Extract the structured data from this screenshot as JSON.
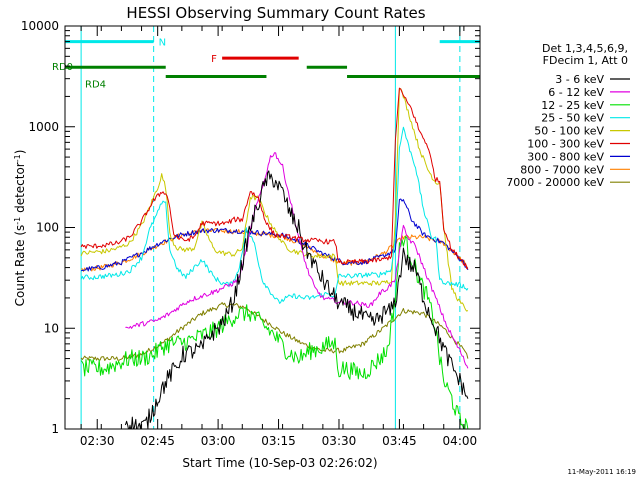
{
  "chart_data": {
    "type": "line",
    "title": "HESSI Observing Summary Count Rates",
    "xlabel": "Start Time (10-Sep-03 02:26:02)",
    "ylabel_main": "Count Rate (s",
    "ylabel_exp": "-1",
    "ylabel_mid": " detector",
    "ylabel_close": ")",
    "timestamp": "11-May-2011 16:19",
    "x_unit": "minutes since 02:26",
    "xlim": [
      -4,
      99
    ],
    "ylim": [
      1,
      10000
    ],
    "yscale": "log",
    "x_ticks": [
      {
        "label": "02:30",
        "value": 4
      },
      {
        "label": "02:45",
        "value": 19
      },
      {
        "label": "03:00",
        "value": 34
      },
      {
        "label": "03:15",
        "value": 49
      },
      {
        "label": "03:30",
        "value": 64
      },
      {
        "label": "03:45",
        "value": 79
      },
      {
        "label": "04:00",
        "value": 94
      }
    ],
    "y_ticks": [
      {
        "label": "1",
        "value": 1
      },
      {
        "label": "10",
        "value": 10
      },
      {
        "label": "100",
        "value": 100
      },
      {
        "label": "1000",
        "value": 1000
      },
      {
        "label": "10000",
        "value": 10000
      }
    ],
    "legend_header": [
      "Det 1,3,4,5,6,9,",
      "FDecim 1, Att 0"
    ],
    "series": [
      {
        "name": "3 - 6 keV",
        "color": "#000000",
        "x": [
          11,
          13,
          15,
          16,
          18,
          20,
          22,
          24,
          25,
          27,
          30,
          32,
          34,
          36,
          38,
          40,
          42,
          44,
          46,
          48,
          50,
          52,
          54,
          55,
          57,
          59,
          61,
          63,
          64,
          65,
          67,
          69,
          71,
          73,
          75,
          77,
          78,
          79,
          80,
          81,
          83,
          85,
          88,
          91,
          94,
          96
        ],
        "y": [
          1.2,
          1.1,
          1.05,
          1.1,
          1.6,
          2.5,
          3.4,
          4.3,
          5.4,
          5.8,
          6.3,
          8.6,
          10,
          13,
          20,
          45,
          100,
          175,
          300,
          300,
          220,
          135,
          98,
          70,
          50,
          35,
          26,
          20,
          18,
          17,
          15,
          14,
          12,
          11.5,
          14,
          15,
          19,
          30,
          60,
          45,
          38,
          20,
          10,
          5,
          3,
          2
        ]
      },
      {
        "name": "6 - 12 keV",
        "color": "#e000e0",
        "x": [
          11,
          15,
          19,
          22,
          25,
          27,
          30,
          33,
          35,
          37,
          39,
          41,
          43,
          45,
          47,
          48,
          50,
          52,
          54,
          56,
          58,
          60,
          62,
          63,
          64,
          66,
          68,
          70,
          72,
          74,
          76,
          78,
          79,
          80,
          81,
          83,
          85,
          88,
          91,
          94,
          96
        ],
        "y": [
          10,
          11,
          12,
          14,
          17,
          19,
          21,
          23,
          25,
          27,
          30,
          60,
          140,
          250,
          500,
          560,
          400,
          180,
          80,
          40,
          25,
          20,
          19,
          19,
          18,
          18,
          18,
          17,
          17,
          22,
          25,
          30,
          60,
          100,
          80,
          65,
          40,
          20,
          10,
          6,
          4
        ]
      },
      {
        "name": "12 - 25 keV",
        "color": "#00e000",
        "x": [
          0,
          3,
          6,
          9,
          12,
          15,
          18,
          20,
          22,
          25,
          28,
          30,
          33,
          36,
          39,
          42,
          45,
          48,
          51,
          54,
          57,
          60,
          62,
          63,
          64,
          65,
          67,
          70,
          73,
          76,
          78,
          79,
          80,
          82,
          84,
          86,
          88,
          89,
          90,
          92,
          94,
          96
        ],
        "y": [
          4,
          4,
          4,
          4.5,
          5,
          5,
          5.5,
          6.5,
          7,
          7.2,
          7.8,
          8.5,
          9.5,
          11.5,
          14,
          14,
          11,
          8.5,
          6,
          5,
          6,
          6.5,
          7,
          7,
          3.8,
          4,
          3.8,
          3.5,
          4.5,
          6,
          20,
          60,
          80,
          50,
          30,
          20,
          10,
          5,
          3,
          2,
          1.2,
          1
        ]
      },
      {
        "name": "25 - 50 keV",
        "color": "#00e8e8",
        "x": [
          0,
          3,
          6,
          9,
          12,
          15,
          17,
          19,
          20,
          21,
          22,
          24,
          26,
          28,
          30,
          33,
          35,
          37,
          39,
          41,
          43,
          45,
          47,
          49,
          51,
          53,
          55,
          57,
          59,
          61,
          63,
          64,
          65,
          68,
          71,
          74,
          77,
          78,
          79,
          80,
          81,
          83,
          85,
          87,
          88,
          89,
          91,
          94,
          96
        ],
        "y": [
          32,
          32,
          33,
          34,
          37,
          50,
          95,
          140,
          175,
          170,
          60,
          38,
          32,
          40,
          48,
          32,
          28,
          27,
          36,
          95,
          70,
          30,
          23,
          18,
          20,
          21,
          20,
          20,
          21,
          22,
          21,
          33,
          33,
          33,
          34,
          34,
          38,
          80,
          600,
          1000,
          700,
          400,
          150,
          80,
          80,
          30,
          28,
          27,
          25
        ]
      },
      {
        "name": "50 - 100 keV",
        "color": "#c8c800",
        "x": [
          0,
          3,
          6,
          9,
          12,
          15,
          17,
          19,
          20,
          21,
          22,
          23,
          24,
          26,
          28,
          30,
          33,
          35,
          38,
          40,
          42,
          44,
          46,
          48,
          50,
          52,
          55,
          58,
          61,
          63,
          64,
          65,
          70,
          75,
          77,
          78,
          79,
          80,
          82,
          84,
          86,
          88,
          89,
          90,
          92,
          94,
          96
        ],
        "y": [
          55,
          57,
          58,
          62,
          70,
          105,
          160,
          250,
          330,
          250,
          90,
          70,
          62,
          60,
          62,
          110,
          60,
          56,
          54,
          62,
          200,
          195,
          130,
          95,
          70,
          60,
          55,
          52,
          52,
          52,
          28,
          28,
          28,
          28,
          30,
          120,
          2500,
          2000,
          1100,
          600,
          380,
          280,
          280,
          100,
          25,
          18,
          15
        ]
      },
      {
        "name": "100 - 300 keV",
        "color": "#e00000",
        "x": [
          0,
          3,
          6,
          9,
          12,
          15,
          18,
          20,
          21,
          22,
          23,
          24,
          25,
          26,
          28,
          30,
          32,
          34,
          36,
          38,
          40,
          42,
          44,
          46,
          48,
          50,
          52,
          54,
          56,
          58,
          60,
          62,
          63,
          64,
          65,
          70,
          75,
          77,
          78,
          79,
          80,
          82,
          84,
          86,
          88,
          89,
          90,
          92,
          94,
          96
        ],
        "y": [
          65,
          65,
          67,
          70,
          80,
          115,
          185,
          225,
          225,
          160,
          85,
          80,
          75,
          75,
          80,
          110,
          110,
          110,
          110,
          120,
          120,
          230,
          195,
          110,
          85,
          82,
          80,
          77,
          75,
          74,
          73,
          72,
          72,
          45,
          45,
          46,
          48,
          52,
          700,
          2500,
          2000,
          1500,
          900,
          650,
          300,
          290,
          100,
          60,
          50,
          40
        ]
      },
      {
        "name": "300 - 800 keV",
        "color": "#0000d0",
        "x": [
          0,
          5,
          10,
          15,
          20,
          25,
          30,
          35,
          40,
          45,
          50,
          55,
          60,
          65,
          70,
          75,
          78,
          79,
          80,
          82,
          85,
          90,
          95,
          96
        ],
        "y": [
          38,
          40,
          45,
          56,
          72,
          85,
          93,
          94,
          92,
          88,
          84,
          70,
          55,
          45,
          45,
          52,
          60,
          180,
          190,
          120,
          85,
          70,
          45,
          38
        ]
      },
      {
        "name": "800 - 7000 keV",
        "color": "#ff8000",
        "x": [
          0,
          5,
          10,
          15,
          20,
          25,
          30,
          35,
          40,
          45,
          50,
          55,
          60,
          65,
          70,
          75,
          80,
          85,
          90,
          95,
          96
        ],
        "y": [
          38,
          40,
          45,
          55,
          70,
          85,
          92,
          93,
          90,
          86,
          82,
          68,
          52,
          44,
          45,
          55,
          80,
          80,
          70,
          45,
          38
        ]
      },
      {
        "name": "7000 - 20000 keV",
        "color": "#808000",
        "x": [
          0,
          5,
          10,
          15,
          20,
          25,
          30,
          35,
          38,
          41,
          44,
          47,
          50,
          55,
          60,
          65,
          70,
          75,
          80,
          85,
          90,
          95,
          96
        ],
        "y": [
          5,
          5,
          5,
          5.5,
          7,
          10,
          14,
          17,
          17,
          16,
          13,
          11,
          9,
          7,
          6,
          6,
          7,
          10,
          15,
          14,
          10,
          6,
          5
        ]
      }
    ],
    "state_bars": [
      {
        "label": "N",
        "color": "#00e8e8",
        "y_value": 7000,
        "segments": [
          [
            -4,
            18
          ],
          [
            89,
            99
          ]
        ]
      },
      {
        "label": "F",
        "color": "#e00000",
        "y_value": 4800,
        "segments": [
          [
            35,
            54
          ]
        ]
      },
      {
        "label": "RD0",
        "color": "#008000",
        "y_value": 3900,
        "segments": [
          [
            -4,
            21
          ],
          [
            56,
            66
          ]
        ]
      },
      {
        "label": "RD4",
        "color": "#008000",
        "y_value": 3150,
        "segments": [
          [
            21,
            46
          ],
          [
            66,
            99
          ]
        ]
      }
    ],
    "vlines": [
      {
        "x": 0,
        "style": "solid",
        "color": "#00e8e8"
      },
      {
        "x": 18,
        "style": "dashed",
        "color": "#00e8e8"
      },
      {
        "x": 78,
        "style": "solid",
        "color": "#00e8e8"
      },
      {
        "x": 94,
        "style": "dashed",
        "color": "#00e8e8"
      }
    ]
  }
}
